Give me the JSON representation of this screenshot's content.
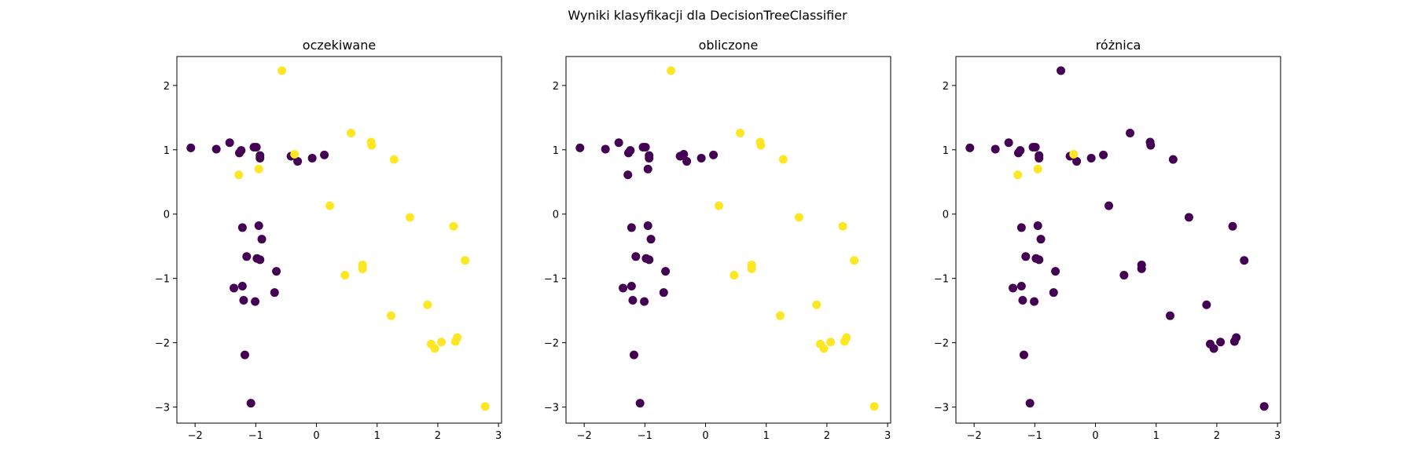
{
  "suptitle": "Wyniki klasyfikacji dla DecisionTreeClassifier",
  "colors": {
    "class0": "#440154",
    "class1": "#fde725"
  },
  "chart_data": [
    {
      "type": "scatter",
      "title": "oczekiwane",
      "xlim": [
        -2.3,
        3.05
      ],
      "ylim": [
        -3.25,
        2.45
      ],
      "xticks": [
        -2,
        -1,
        0,
        1,
        2,
        3
      ],
      "yticks": [
        -3,
        -2,
        -1,
        0,
        1,
        2
      ],
      "xtick_labels": [
        "−2",
        "−1",
        "0",
        "1",
        "2",
        "3"
      ],
      "ytick_labels": [
        "−3",
        "−2",
        "−1",
        "0",
        "1",
        "2"
      ],
      "points": [
        {
          "x": -2.07,
          "y": 1.03,
          "c": 0
        },
        {
          "x": -1.65,
          "y": 1.01,
          "c": 0
        },
        {
          "x": -1.43,
          "y": 1.11,
          "c": 0
        },
        {
          "x": -1.27,
          "y": 0.95,
          "c": 0
        },
        {
          "x": -1.24,
          "y": 0.99,
          "c": 0
        },
        {
          "x": -1.03,
          "y": 1.04,
          "c": 0
        },
        {
          "x": -0.99,
          "y": 1.04,
          "c": 0
        },
        {
          "x": -0.93,
          "y": 0.91,
          "c": 0
        },
        {
          "x": -0.93,
          "y": 0.87,
          "c": 0
        },
        {
          "x": -0.42,
          "y": 0.9,
          "c": 0
        },
        {
          "x": -0.31,
          "y": 0.82,
          "c": 0
        },
        {
          "x": -0.07,
          "y": 0.87,
          "c": 0
        },
        {
          "x": 0.13,
          "y": 0.92,
          "c": 0
        },
        {
          "x": -1.22,
          "y": -0.21,
          "c": 0
        },
        {
          "x": -0.95,
          "y": -0.18,
          "c": 0
        },
        {
          "x": -0.9,
          "y": -0.39,
          "c": 0
        },
        {
          "x": -1.15,
          "y": -0.66,
          "c": 0
        },
        {
          "x": -0.98,
          "y": -0.69,
          "c": 0
        },
        {
          "x": -0.93,
          "y": -0.71,
          "c": 0
        },
        {
          "x": -0.66,
          "y": -0.89,
          "c": 0
        },
        {
          "x": -1.36,
          "y": -1.15,
          "c": 0
        },
        {
          "x": -1.22,
          "y": -1.12,
          "c": 0
        },
        {
          "x": -1.2,
          "y": -1.34,
          "c": 0
        },
        {
          "x": -1.01,
          "y": -1.36,
          "c": 0
        },
        {
          "x": -0.69,
          "y": -1.22,
          "c": 0
        },
        {
          "x": -1.18,
          "y": -2.19,
          "c": 0
        },
        {
          "x": -1.08,
          "y": -2.94,
          "c": 0
        },
        {
          "x": -0.57,
          "y": 2.23,
          "c": 1
        },
        {
          "x": 0.57,
          "y": 1.26,
          "c": 1
        },
        {
          "x": 0.9,
          "y": 1.12,
          "c": 1
        },
        {
          "x": 0.91,
          "y": 1.07,
          "c": 1
        },
        {
          "x": -0.36,
          "y": 0.93,
          "c": 1
        },
        {
          "x": 1.28,
          "y": 0.85,
          "c": 1
        },
        {
          "x": -0.95,
          "y": 0.7,
          "c": 1
        },
        {
          "x": -1.28,
          "y": 0.61,
          "c": 1
        },
        {
          "x": 0.22,
          "y": 0.13,
          "c": 1
        },
        {
          "x": 1.54,
          "y": -0.05,
          "c": 1
        },
        {
          "x": 2.26,
          "y": -0.19,
          "c": 1
        },
        {
          "x": 2.45,
          "y": -0.72,
          "c": 1
        },
        {
          "x": 0.76,
          "y": -0.79,
          "c": 1
        },
        {
          "x": 0.76,
          "y": -0.85,
          "c": 1
        },
        {
          "x": 0.47,
          "y": -0.95,
          "c": 1
        },
        {
          "x": 1.83,
          "y": -1.41,
          "c": 1
        },
        {
          "x": 1.23,
          "y": -1.58,
          "c": 1
        },
        {
          "x": 1.89,
          "y": -2.02,
          "c": 1
        },
        {
          "x": 1.95,
          "y": -2.09,
          "c": 1
        },
        {
          "x": 2.06,
          "y": -1.99,
          "c": 1
        },
        {
          "x": 2.29,
          "y": -1.98,
          "c": 1
        },
        {
          "x": 2.32,
          "y": -1.92,
          "c": 1
        },
        {
          "x": 2.78,
          "y": -2.99,
          "c": 1
        }
      ]
    },
    {
      "type": "scatter",
      "title": "obliczone",
      "xlim": [
        -2.3,
        3.05
      ],
      "ylim": [
        -3.25,
        2.45
      ],
      "xticks": [
        -2,
        -1,
        0,
        1,
        2,
        3
      ],
      "yticks": [
        -3,
        -2,
        -1,
        0,
        1,
        2
      ],
      "xtick_labels": [
        "−2",
        "−1",
        "0",
        "1",
        "2",
        "3"
      ],
      "ytick_labels": [
        "−3",
        "−2",
        "−1",
        "0",
        "1",
        "2"
      ],
      "points": [
        {
          "x": -2.07,
          "y": 1.03,
          "c": 0
        },
        {
          "x": -1.65,
          "y": 1.01,
          "c": 0
        },
        {
          "x": -1.43,
          "y": 1.11,
          "c": 0
        },
        {
          "x": -1.27,
          "y": 0.95,
          "c": 0
        },
        {
          "x": -1.24,
          "y": 0.99,
          "c": 0
        },
        {
          "x": -1.03,
          "y": 1.04,
          "c": 0
        },
        {
          "x": -0.99,
          "y": 1.04,
          "c": 0
        },
        {
          "x": -0.93,
          "y": 0.91,
          "c": 0
        },
        {
          "x": -0.93,
          "y": 0.87,
          "c": 0
        },
        {
          "x": -0.42,
          "y": 0.9,
          "c": 0
        },
        {
          "x": -0.31,
          "y": 0.82,
          "c": 0
        },
        {
          "x": -0.07,
          "y": 0.87,
          "c": 0
        },
        {
          "x": 0.13,
          "y": 0.92,
          "c": 0
        },
        {
          "x": -1.22,
          "y": -0.21,
          "c": 0
        },
        {
          "x": -0.95,
          "y": -0.18,
          "c": 0
        },
        {
          "x": -0.9,
          "y": -0.39,
          "c": 0
        },
        {
          "x": -1.15,
          "y": -0.66,
          "c": 0
        },
        {
          "x": -0.98,
          "y": -0.69,
          "c": 0
        },
        {
          "x": -0.93,
          "y": -0.71,
          "c": 0
        },
        {
          "x": -0.66,
          "y": -0.89,
          "c": 0
        },
        {
          "x": -1.36,
          "y": -1.15,
          "c": 0
        },
        {
          "x": -1.22,
          "y": -1.12,
          "c": 0
        },
        {
          "x": -1.2,
          "y": -1.34,
          "c": 0
        },
        {
          "x": -1.01,
          "y": -1.36,
          "c": 0
        },
        {
          "x": -0.69,
          "y": -1.22,
          "c": 0
        },
        {
          "x": -1.18,
          "y": -2.19,
          "c": 0
        },
        {
          "x": -1.08,
          "y": -2.94,
          "c": 0
        },
        {
          "x": -0.36,
          "y": 0.93,
          "c": 0
        },
        {
          "x": -0.95,
          "y": 0.7,
          "c": 0
        },
        {
          "x": -1.28,
          "y": 0.61,
          "c": 0
        },
        {
          "x": -0.57,
          "y": 2.23,
          "c": 1
        },
        {
          "x": 0.57,
          "y": 1.26,
          "c": 1
        },
        {
          "x": 0.9,
          "y": 1.12,
          "c": 1
        },
        {
          "x": 0.91,
          "y": 1.07,
          "c": 1
        },
        {
          "x": 1.28,
          "y": 0.85,
          "c": 1
        },
        {
          "x": 0.22,
          "y": 0.13,
          "c": 1
        },
        {
          "x": 1.54,
          "y": -0.05,
          "c": 1
        },
        {
          "x": 2.26,
          "y": -0.19,
          "c": 1
        },
        {
          "x": 2.45,
          "y": -0.72,
          "c": 1
        },
        {
          "x": 0.76,
          "y": -0.79,
          "c": 1
        },
        {
          "x": 0.76,
          "y": -0.85,
          "c": 1
        },
        {
          "x": 0.47,
          "y": -0.95,
          "c": 1
        },
        {
          "x": 1.83,
          "y": -1.41,
          "c": 1
        },
        {
          "x": 1.23,
          "y": -1.58,
          "c": 1
        },
        {
          "x": 1.89,
          "y": -2.02,
          "c": 1
        },
        {
          "x": 1.95,
          "y": -2.09,
          "c": 1
        },
        {
          "x": 2.06,
          "y": -1.99,
          "c": 1
        },
        {
          "x": 2.29,
          "y": -1.98,
          "c": 1
        },
        {
          "x": 2.32,
          "y": -1.92,
          "c": 1
        },
        {
          "x": 2.78,
          "y": -2.99,
          "c": 1
        }
      ]
    },
    {
      "type": "scatter",
      "title": "różnica",
      "xlim": [
        -2.3,
        3.05
      ],
      "ylim": [
        -3.25,
        2.45
      ],
      "xticks": [
        -2,
        -1,
        0,
        1,
        2,
        3
      ],
      "yticks": [
        -3,
        -2,
        -1,
        0,
        1,
        2
      ],
      "xtick_labels": [
        "−2",
        "−1",
        "0",
        "1",
        "2",
        "3"
      ],
      "ytick_labels": [
        "−3",
        "−2",
        "−1",
        "0",
        "1",
        "2"
      ],
      "points": [
        {
          "x": -2.07,
          "y": 1.03,
          "c": 0
        },
        {
          "x": -1.65,
          "y": 1.01,
          "c": 0
        },
        {
          "x": -1.43,
          "y": 1.11,
          "c": 0
        },
        {
          "x": -1.27,
          "y": 0.95,
          "c": 0
        },
        {
          "x": -1.24,
          "y": 0.99,
          "c": 0
        },
        {
          "x": -1.03,
          "y": 1.04,
          "c": 0
        },
        {
          "x": -0.99,
          "y": 1.04,
          "c": 0
        },
        {
          "x": -0.93,
          "y": 0.91,
          "c": 0
        },
        {
          "x": -0.93,
          "y": 0.87,
          "c": 0
        },
        {
          "x": -0.42,
          "y": 0.9,
          "c": 0
        },
        {
          "x": -0.31,
          "y": 0.82,
          "c": 0
        },
        {
          "x": -0.07,
          "y": 0.87,
          "c": 0
        },
        {
          "x": 0.13,
          "y": 0.92,
          "c": 0
        },
        {
          "x": -1.22,
          "y": -0.21,
          "c": 0
        },
        {
          "x": -0.95,
          "y": -0.18,
          "c": 0
        },
        {
          "x": -0.9,
          "y": -0.39,
          "c": 0
        },
        {
          "x": -1.15,
          "y": -0.66,
          "c": 0
        },
        {
          "x": -0.98,
          "y": -0.69,
          "c": 0
        },
        {
          "x": -0.93,
          "y": -0.71,
          "c": 0
        },
        {
          "x": -0.66,
          "y": -0.89,
          "c": 0
        },
        {
          "x": -1.36,
          "y": -1.15,
          "c": 0
        },
        {
          "x": -1.22,
          "y": -1.12,
          "c": 0
        },
        {
          "x": -1.2,
          "y": -1.34,
          "c": 0
        },
        {
          "x": -1.01,
          "y": -1.36,
          "c": 0
        },
        {
          "x": -0.69,
          "y": -1.22,
          "c": 0
        },
        {
          "x": -1.18,
          "y": -2.19,
          "c": 0
        },
        {
          "x": -1.08,
          "y": -2.94,
          "c": 0
        },
        {
          "x": -0.57,
          "y": 2.23,
          "c": 0
        },
        {
          "x": 0.57,
          "y": 1.26,
          "c": 0
        },
        {
          "x": 0.9,
          "y": 1.12,
          "c": 0
        },
        {
          "x": 0.91,
          "y": 1.07,
          "c": 0
        },
        {
          "x": 1.28,
          "y": 0.85,
          "c": 0
        },
        {
          "x": 0.22,
          "y": 0.13,
          "c": 0
        },
        {
          "x": 1.54,
          "y": -0.05,
          "c": 0
        },
        {
          "x": 2.26,
          "y": -0.19,
          "c": 0
        },
        {
          "x": 2.45,
          "y": -0.72,
          "c": 0
        },
        {
          "x": 0.76,
          "y": -0.79,
          "c": 0
        },
        {
          "x": 0.76,
          "y": -0.85,
          "c": 0
        },
        {
          "x": 0.47,
          "y": -0.95,
          "c": 0
        },
        {
          "x": 1.83,
          "y": -1.41,
          "c": 0
        },
        {
          "x": 1.23,
          "y": -1.58,
          "c": 0
        },
        {
          "x": 1.89,
          "y": -2.02,
          "c": 0
        },
        {
          "x": 1.95,
          "y": -2.09,
          "c": 0
        },
        {
          "x": 2.06,
          "y": -1.99,
          "c": 0
        },
        {
          "x": 2.29,
          "y": -1.98,
          "c": 0
        },
        {
          "x": 2.32,
          "y": -1.92,
          "c": 0
        },
        {
          "x": 2.78,
          "y": -2.99,
          "c": 0
        },
        {
          "x": -0.36,
          "y": 0.93,
          "c": 1
        },
        {
          "x": -0.95,
          "y": 0.7,
          "c": 1
        },
        {
          "x": -1.28,
          "y": 0.61,
          "c": 1
        }
      ]
    }
  ]
}
